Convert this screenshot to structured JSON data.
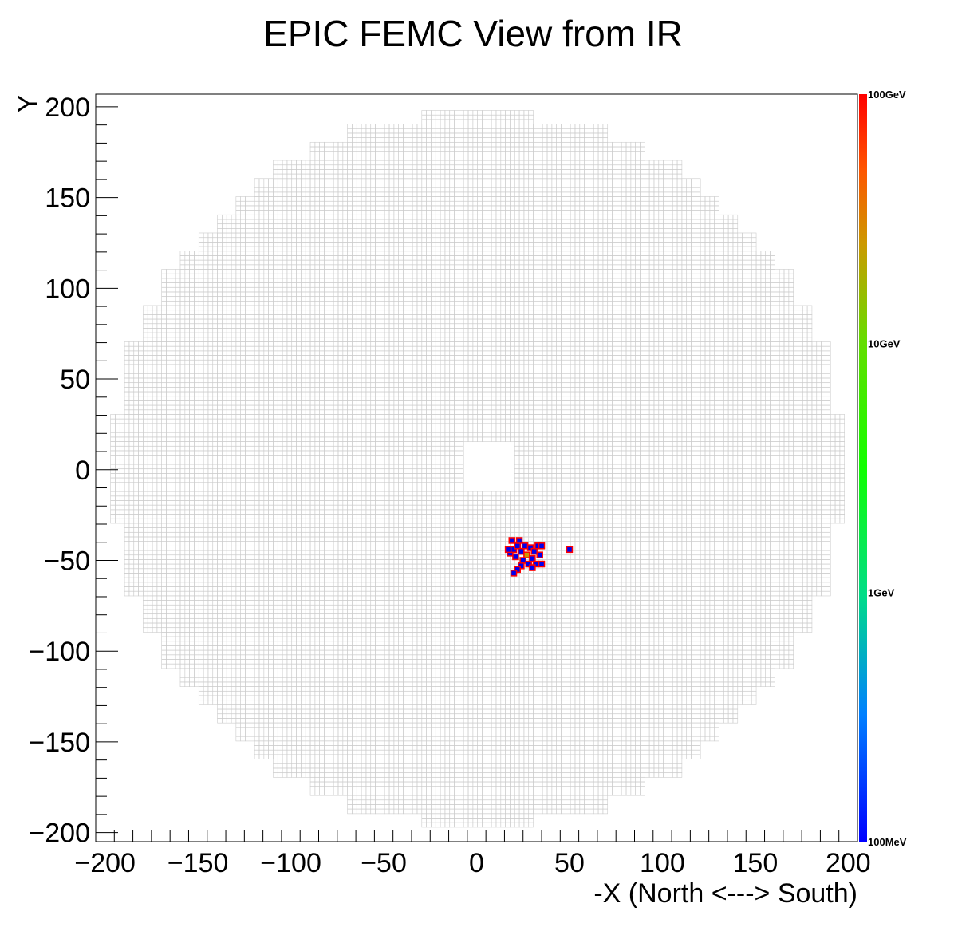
{
  "chart_data": {
    "type": "heatmap",
    "title": "EPIC FEMC View from IR",
    "xlabel": "-X (North <---> South)",
    "ylabel": "Y",
    "xlim": [
      -205,
      205
    ],
    "ylim": [
      -205,
      207
    ],
    "x_tick_values": [
      -200,
      -150,
      -100,
      -50,
      0,
      50,
      100,
      150,
      200
    ],
    "x_tick_labels": [
      "−200",
      "−150",
      "−100",
      "−50",
      "0",
      "50",
      "100",
      "150",
      "200"
    ],
    "y_tick_values": [
      200,
      150,
      100,
      50,
      0,
      -50,
      -100,
      -150,
      -200
    ],
    "y_tick_labels": [
      "200",
      "150",
      "100",
      "50",
      "0",
      "−50",
      "−100",
      "−150",
      "−200"
    ],
    "colorbar": {
      "scale": "log",
      "range": [
        "100MeV",
        "100GeV"
      ],
      "tick_labels": [
        "100GeV",
        "10GeV",
        "1GeV",
        "100MeV"
      ]
    },
    "grid_outline_color": "#cccccc",
    "calorimeter": {
      "outer_radius": 197,
      "beam_hole": {
        "x": [
          -8,
          20
        ],
        "y": [
          -13,
          15
        ]
      },
      "cell_size": 2.5
    },
    "hits": [
      {
        "x": 18,
        "y": -46,
        "level": "low"
      },
      {
        "x": 19,
        "y": -39,
        "level": "low"
      },
      {
        "x": 20,
        "y": -44,
        "level": "low"
      },
      {
        "x": 21,
        "y": -48,
        "level": "low"
      },
      {
        "x": 22,
        "y": -42,
        "level": "low"
      },
      {
        "x": 23,
        "y": -39,
        "level": "low"
      },
      {
        "x": 24,
        "y": -45,
        "level": "low"
      },
      {
        "x": 25,
        "y": -50,
        "level": "low"
      },
      {
        "x": 26,
        "y": -42,
        "level": "low"
      },
      {
        "x": 27,
        "y": -47,
        "level": "high"
      },
      {
        "x": 28,
        "y": -52,
        "level": "low"
      },
      {
        "x": 29,
        "y": -43,
        "level": "low"
      },
      {
        "x": 30,
        "y": -49,
        "level": "low"
      },
      {
        "x": 31,
        "y": -45,
        "level": "low"
      },
      {
        "x": 32,
        "y": -52,
        "level": "low"
      },
      {
        "x": 33,
        "y": -42,
        "level": "low"
      },
      {
        "x": 34,
        "y": -47,
        "level": "low"
      },
      {
        "x": 35,
        "y": -52,
        "level": "low"
      },
      {
        "x": 24,
        "y": -53,
        "level": "low"
      },
      {
        "x": 22,
        "y": -55,
        "level": "low"
      },
      {
        "x": 20,
        "y": -57,
        "level": "low"
      },
      {
        "x": 30,
        "y": -54,
        "level": "low"
      },
      {
        "x": 17,
        "y": -44,
        "level": "low"
      },
      {
        "x": 35,
        "y": -42,
        "level": "low"
      },
      {
        "x": 50,
        "y": -44,
        "level": "low"
      }
    ]
  }
}
